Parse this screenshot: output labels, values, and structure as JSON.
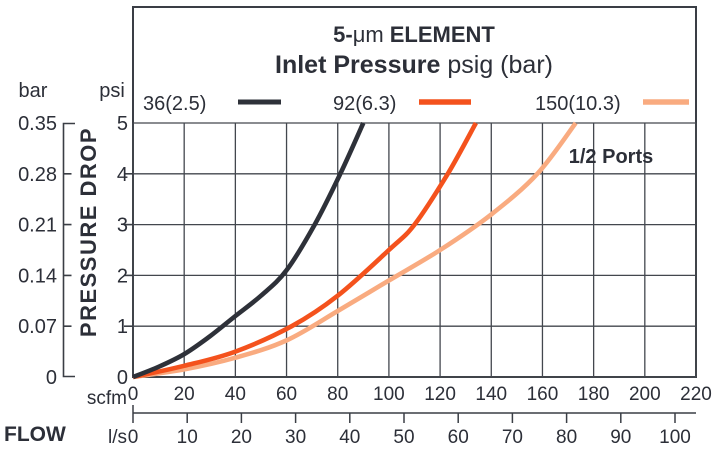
{
  "title": {
    "line1_bold_prefix": "5-",
    "line1_mu": "μm",
    "line1_bold_suffix": "ELEMENT",
    "line2_bold": "Inlet Pressure",
    "line2_regular": "psig (bar)"
  },
  "annotation": {
    "ports_label": "1/2 Ports"
  },
  "legend": {
    "items": [
      {
        "label": "36(2.5)",
        "color": "#2e3139"
      },
      {
        "label": "92(6.3)",
        "color": "#f4521d"
      },
      {
        "label": "150(10.3)",
        "color": "#f9ab80"
      }
    ]
  },
  "axes": {
    "left_outer_unit": "bar",
    "left_inner_unit": "psi",
    "pressure_drop_label": "PRESSURE DROP",
    "flow_label": "FLOW",
    "scfm_label": "scfm",
    "ls_label": "l/s"
  },
  "colors": {
    "text": "#2c2f38",
    "grid": "#43474e",
    "frame": "#3a3e45",
    "background": "#ffffff"
  },
  "chart_data": {
    "type": "line",
    "title": "5-μm ELEMENT — Inlet Pressure psig (bar)",
    "xlabel": "FLOW",
    "x_units": [
      "scfm",
      "l/s"
    ],
    "ylabel": "PRESSURE DROP",
    "y_units": [
      "psi",
      "bar"
    ],
    "xlim_scfm": [
      0,
      220
    ],
    "xlim_ls": [
      0,
      103.8
    ],
    "ylim_psi": [
      0,
      5
    ],
    "grid": true,
    "legend_position": "top",
    "annotation": "1/2 Ports",
    "x_ticks_scfm": [
      0,
      20,
      40,
      60,
      80,
      100,
      120,
      140,
      160,
      180,
      200,
      220
    ],
    "x_ticks_ls": [
      0,
      10,
      20,
      30,
      40,
      50,
      60,
      70,
      80,
      90,
      100
    ],
    "y_ticks_psi": [
      5,
      4,
      3,
      2,
      1,
      0
    ],
    "y_ticks_bar": [
      "0.35",
      "0.28",
      "0.21",
      "0.14",
      "0.07",
      "0"
    ],
    "series": [
      {
        "name": "36(2.5)",
        "color": "#2e3139",
        "points_scfm_psi": [
          [
            0,
            0
          ],
          [
            10,
            0.2
          ],
          [
            20,
            0.45
          ],
          [
            30,
            0.8
          ],
          [
            40,
            1.2
          ],
          [
            50,
            1.6
          ],
          [
            60,
            2.1
          ],
          [
            71,
            3
          ],
          [
            81,
            4
          ],
          [
            90,
            5
          ]
        ]
      },
      {
        "name": "92(6.3)",
        "color": "#f4521d",
        "points_scfm_psi": [
          [
            0,
            0
          ],
          [
            20,
            0.22
          ],
          [
            40,
            0.5
          ],
          [
            62,
            1
          ],
          [
            80,
            1.6
          ],
          [
            100,
            2.5
          ],
          [
            110,
            3
          ],
          [
            123,
            4
          ],
          [
            134,
            5
          ]
        ]
      },
      {
        "name": "150(10.3)",
        "color": "#f9ab80",
        "points_scfm_psi": [
          [
            0,
            0
          ],
          [
            20,
            0.15
          ],
          [
            40,
            0.38
          ],
          [
            60,
            0.72
          ],
          [
            80,
            1.3
          ],
          [
            100,
            1.9
          ],
          [
            120,
            2.5
          ],
          [
            140,
            3.2
          ],
          [
            158,
            4
          ],
          [
            173,
            5
          ]
        ]
      }
    ]
  }
}
